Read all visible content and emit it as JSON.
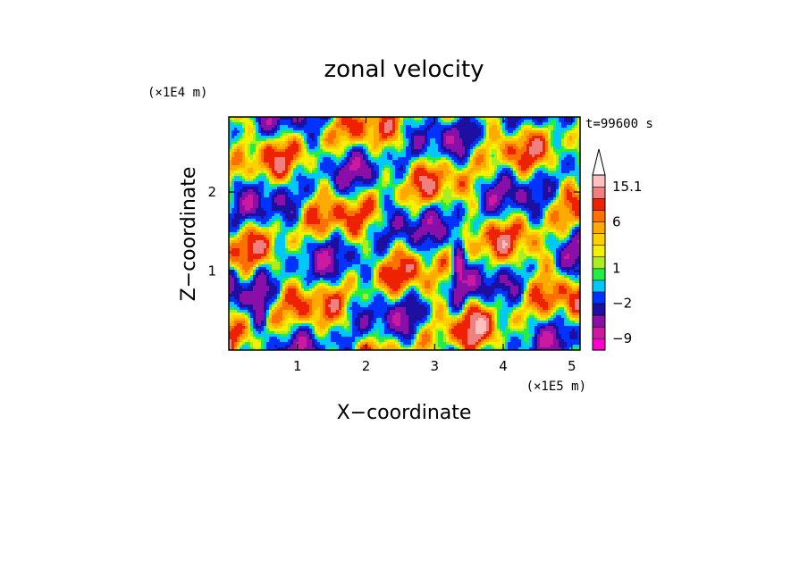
{
  "chart_data": {
    "type": "heatmap",
    "title": "zonal velocity",
    "xlabel": "X−coordinate",
    "ylabel": "Z−coordinate",
    "x_unit": "(×1E5 m)",
    "y_unit": "(×1E4 m)",
    "time_label": "t=99600 s",
    "xlim": [
      0.0,
      5.12
    ],
    "ylim": [
      0.0,
      2.95
    ],
    "x_ticks": [
      "1",
      "2",
      "3",
      "4",
      "5"
    ],
    "y_ticks": [
      "1",
      "2"
    ],
    "colorbar": {
      "tick_labels": [
        "15.1",
        "6",
        "1",
        "−2",
        "−9"
      ],
      "colors": [
        "#ff00cc",
        "#cc1aa0",
        "#8a0fa8",
        "#1d10a0",
        "#0033ff",
        "#00c8ff",
        "#22ee44",
        "#aaee22",
        "#f2f200",
        "#ffd000",
        "#ffaa00",
        "#ff7000",
        "#ee2200",
        "#f08080",
        "#ffc0c0",
        "#ffffff"
      ],
      "extend": "max"
    }
  }
}
